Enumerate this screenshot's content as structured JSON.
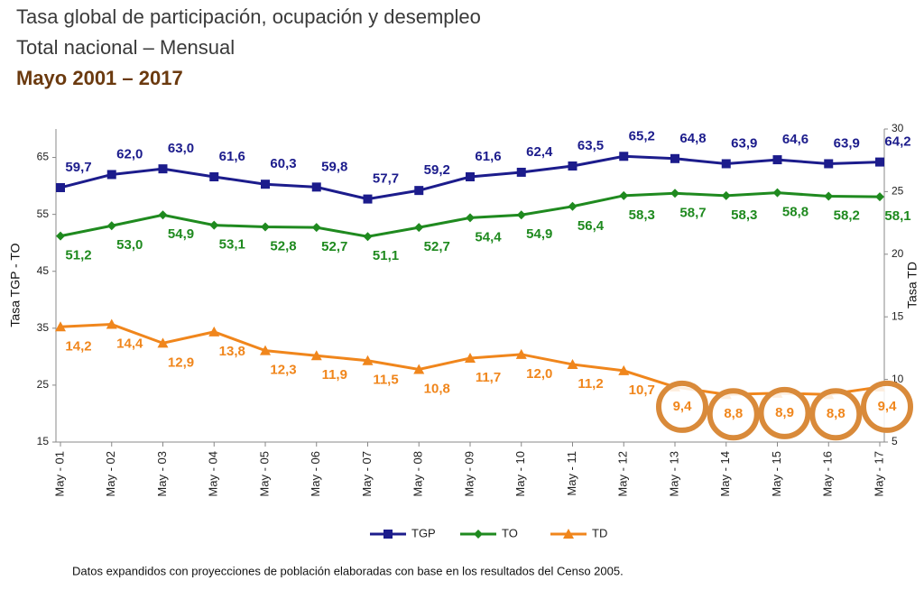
{
  "chart_data": {
    "type": "line",
    "title": "Tasa global de participación, ocupación y desempleo",
    "subtitle": "Total nacional – Mensual",
    "period": "Mayo 2001 – 2017",
    "ylabel": "Tasa TGP - TO",
    "y2label": "Tasa TD",
    "note": "Datos expandidos con proyecciones de población elaboradas con base en los resultados del Censo 2005.",
    "categories": [
      "May - 01",
      "May - 02",
      "May - 03",
      "May - 04",
      "May - 05",
      "May - 06",
      "May - 07",
      "May - 08",
      "May - 09",
      "May - 10",
      "May - 11",
      "May - 12",
      "May - 13",
      "May - 14",
      "May - 15",
      "May - 16",
      "May - 17"
    ],
    "ylim": [
      15,
      70
    ],
    "yticks": [
      15,
      25,
      35,
      45,
      55,
      65
    ],
    "y2lim": [
      5,
      30
    ],
    "y2ticks": [
      5,
      10,
      15,
      20,
      25,
      30
    ],
    "series": [
      {
        "name": "TGP",
        "color": "#1c1c8c",
        "marker": "square",
        "values": [
          59.7,
          62.0,
          63.0,
          61.6,
          60.3,
          59.8,
          57.7,
          59.2,
          61.6,
          62.4,
          63.5,
          65.2,
          64.8,
          63.9,
          64.6,
          63.9,
          64.2
        ],
        "value_labels": [
          "59,7",
          "62,0",
          "63,0",
          "61,6",
          "60,3",
          "59,8",
          "57,7",
          "59,2",
          "61,6",
          "62,4",
          "63,5",
          "65,2",
          "64,8",
          "63,9",
          "64,6",
          "63,9",
          "64,2"
        ]
      },
      {
        "name": "TO",
        "color": "#1f8a1f",
        "marker": "diamond",
        "values": [
          51.2,
          53.0,
          54.9,
          53.1,
          52.8,
          52.7,
          51.1,
          52.7,
          54.4,
          54.9,
          56.4,
          58.3,
          58.7,
          58.3,
          58.8,
          58.2,
          58.1
        ],
        "value_labels": [
          "51,2",
          "53,0",
          "54,9",
          "53,1",
          "52,8",
          "52,7",
          "51,1",
          "52,7",
          "54,4",
          "54,9",
          "56,4",
          "58,3",
          "58,7",
          "58,3",
          "58,8",
          "58,2",
          "58,1"
        ]
      },
      {
        "name": "TD",
        "color": "#f0861c",
        "marker": "triangle",
        "axis": "y2",
        "values": [
          14.2,
          14.4,
          12.9,
          13.8,
          12.3,
          11.9,
          11.5,
          10.8,
          11.7,
          12.0,
          11.2,
          10.7,
          9.4,
          8.8,
          8.9,
          8.8,
          9.4
        ],
        "value_labels": [
          "14,2",
          "14,4",
          "12,9",
          "13,8",
          "12,3",
          "11,9",
          "11,5",
          "10,8",
          "11,7",
          "12,0",
          "11,2",
          "10,7",
          "9,4",
          "8,8",
          "8,9",
          "8,8",
          "9,4"
        ]
      }
    ]
  }
}
